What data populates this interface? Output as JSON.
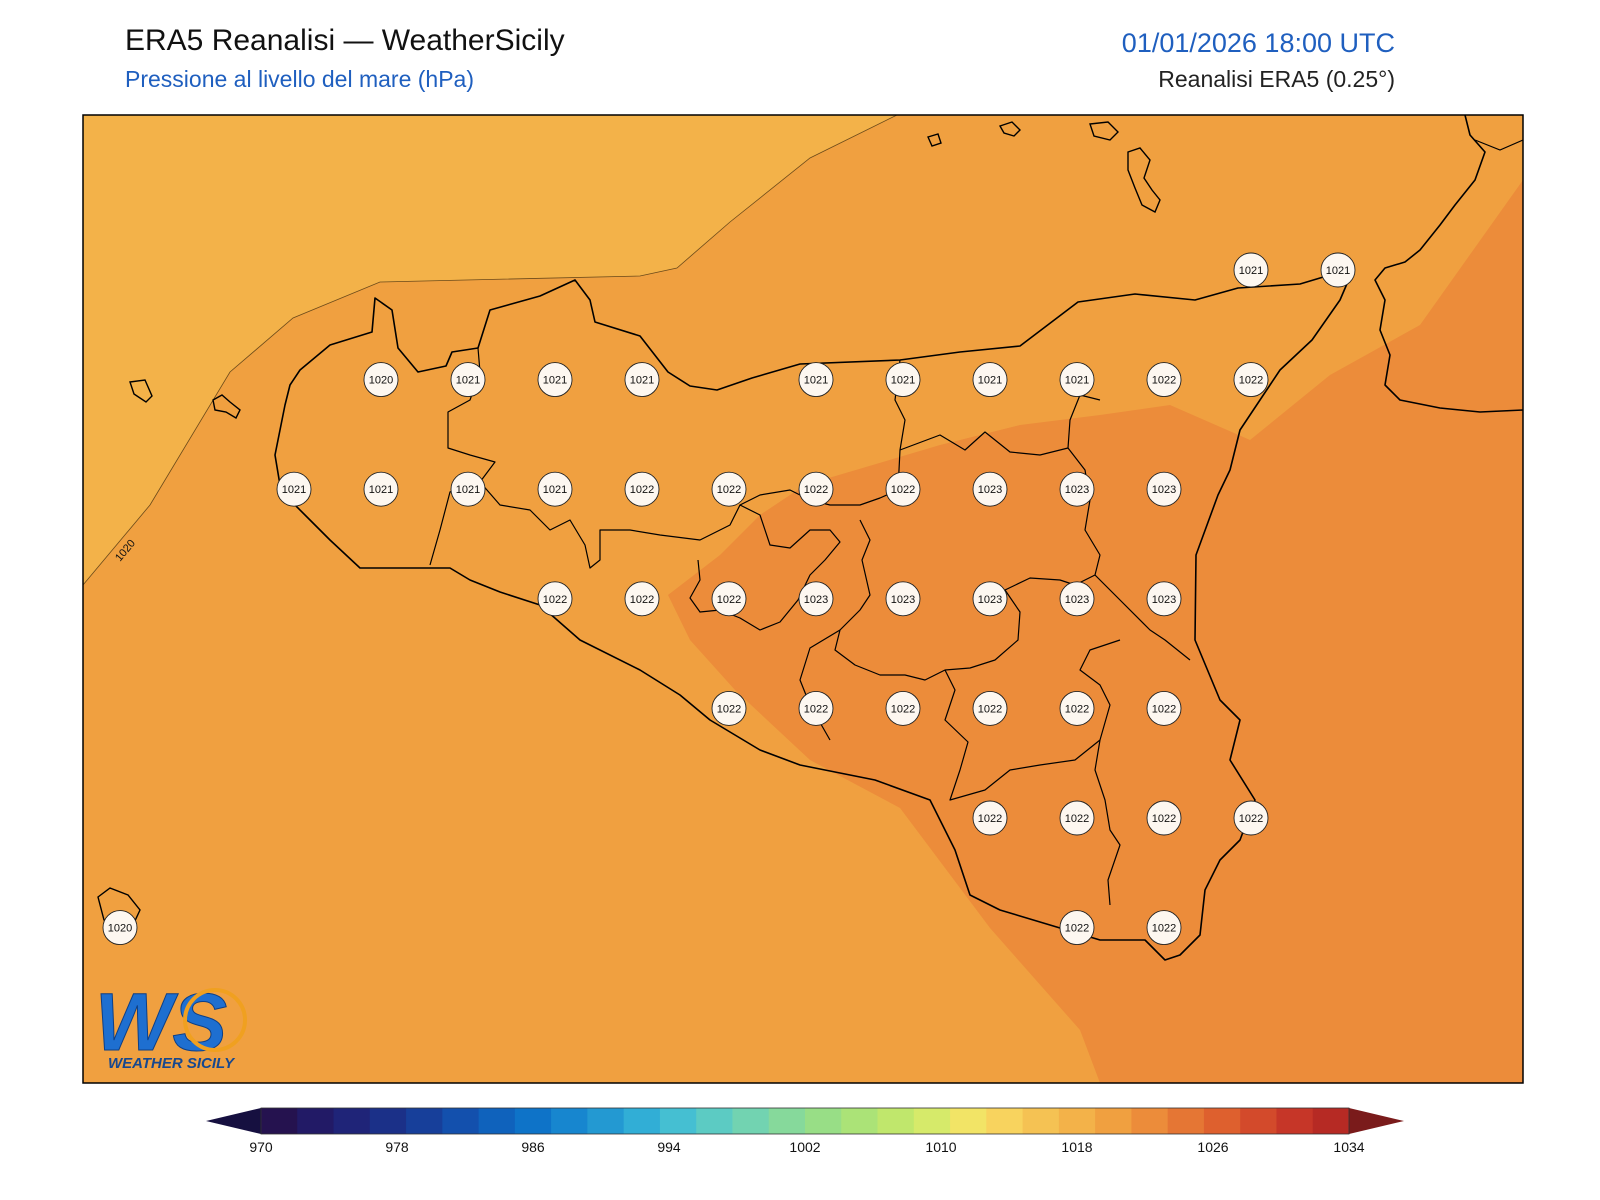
{
  "header": {
    "title": "ERA5 Reanalisi — WeatherSicily",
    "subtitle": "Pressione al livello del mare (hPa)",
    "datetime": "01/01/2026 18:00 UTC",
    "source": "Reanalisi ERA5 (0.25°)"
  },
  "map": {
    "contour_label": "1020",
    "colors": {
      "lt1020": "#f3b249",
      "r1020": "#f0a040",
      "r1022": "#ec8c3a"
    },
    "stations": [
      {
        "row": 0,
        "col": 13,
        "value": "1021"
      },
      {
        "row": 0,
        "col": 14,
        "value": "1021"
      },
      {
        "row": 1,
        "col": 3,
        "value": "1020"
      },
      {
        "row": 1,
        "col": 4,
        "value": "1021"
      },
      {
        "row": 1,
        "col": 5,
        "value": "1021"
      },
      {
        "row": 1,
        "col": 6,
        "value": "1021"
      },
      {
        "row": 1,
        "col": 8,
        "value": "1021"
      },
      {
        "row": 1,
        "col": 9,
        "value": "1021"
      },
      {
        "row": 1,
        "col": 10,
        "value": "1021"
      },
      {
        "row": 1,
        "col": 11,
        "value": "1021"
      },
      {
        "row": 1,
        "col": 12,
        "value": "1022"
      },
      {
        "row": 1,
        "col": 13,
        "value": "1022"
      },
      {
        "row": 2,
        "col": 2,
        "value": "1021"
      },
      {
        "row": 2,
        "col": 3,
        "value": "1021"
      },
      {
        "row": 2,
        "col": 4,
        "value": "1021"
      },
      {
        "row": 2,
        "col": 5,
        "value": "1021"
      },
      {
        "row": 2,
        "col": 6,
        "value": "1022"
      },
      {
        "row": 2,
        "col": 7,
        "value": "1022"
      },
      {
        "row": 2,
        "col": 8,
        "value": "1022"
      },
      {
        "row": 2,
        "col": 9,
        "value": "1022"
      },
      {
        "row": 2,
        "col": 10,
        "value": "1023"
      },
      {
        "row": 2,
        "col": 11,
        "value": "1023"
      },
      {
        "row": 2,
        "col": 12,
        "value": "1023"
      },
      {
        "row": 3,
        "col": 5,
        "value": "1022"
      },
      {
        "row": 3,
        "col": 6,
        "value": "1022"
      },
      {
        "row": 3,
        "col": 7,
        "value": "1022"
      },
      {
        "row": 3,
        "col": 8,
        "value": "1023"
      },
      {
        "row": 3,
        "col": 9,
        "value": "1023"
      },
      {
        "row": 3,
        "col": 10,
        "value": "1023"
      },
      {
        "row": 3,
        "col": 11,
        "value": "1023"
      },
      {
        "row": 3,
        "col": 12,
        "value": "1023"
      },
      {
        "row": 4,
        "col": 7,
        "value": "1022"
      },
      {
        "row": 4,
        "col": 8,
        "value": "1022"
      },
      {
        "row": 4,
        "col": 9,
        "value": "1022"
      },
      {
        "row": 4,
        "col": 10,
        "value": "1022"
      },
      {
        "row": 4,
        "col": 11,
        "value": "1022"
      },
      {
        "row": 4,
        "col": 12,
        "value": "1022"
      },
      {
        "row": 5,
        "col": 10,
        "value": "1022"
      },
      {
        "row": 5,
        "col": 11,
        "value": "1022"
      },
      {
        "row": 5,
        "col": 12,
        "value": "1022"
      },
      {
        "row": 5,
        "col": 13,
        "value": "1022"
      },
      {
        "row": 6,
        "col": 0,
        "value": "1020"
      },
      {
        "row": 6,
        "col": 11,
        "value": "1022"
      },
      {
        "row": 6,
        "col": 12,
        "value": "1022"
      }
    ]
  },
  "colorbar": {
    "colors": [
      "#25124f",
      "#221a66",
      "#1f2478",
      "#1b3088",
      "#173f9a",
      "#1350ad",
      "#0f62bc",
      "#0e73c8",
      "#1786cf",
      "#2399d2",
      "#31aed6",
      "#45bfd2",
      "#5ccbc3",
      "#72d3b1",
      "#86d99b",
      "#98de86",
      "#abe377",
      "#c0e76c",
      "#d6ea6a",
      "#f2e466",
      "#f8d35e",
      "#f5c253",
      "#f3b249",
      "#f0a040",
      "#ec8c3a",
      "#e57634",
      "#de602e",
      "#d34a2b",
      "#c63628",
      "#b62a24"
    ],
    "under_color": "#161040",
    "over_color": "#7a1b1b",
    "ticks": [
      "970",
      "978",
      "986",
      "994",
      "1002",
      "1010",
      "1018",
      "1026",
      "1034"
    ]
  },
  "logo": {
    "text": "WS",
    "caption": "WEATHER SICILY"
  }
}
